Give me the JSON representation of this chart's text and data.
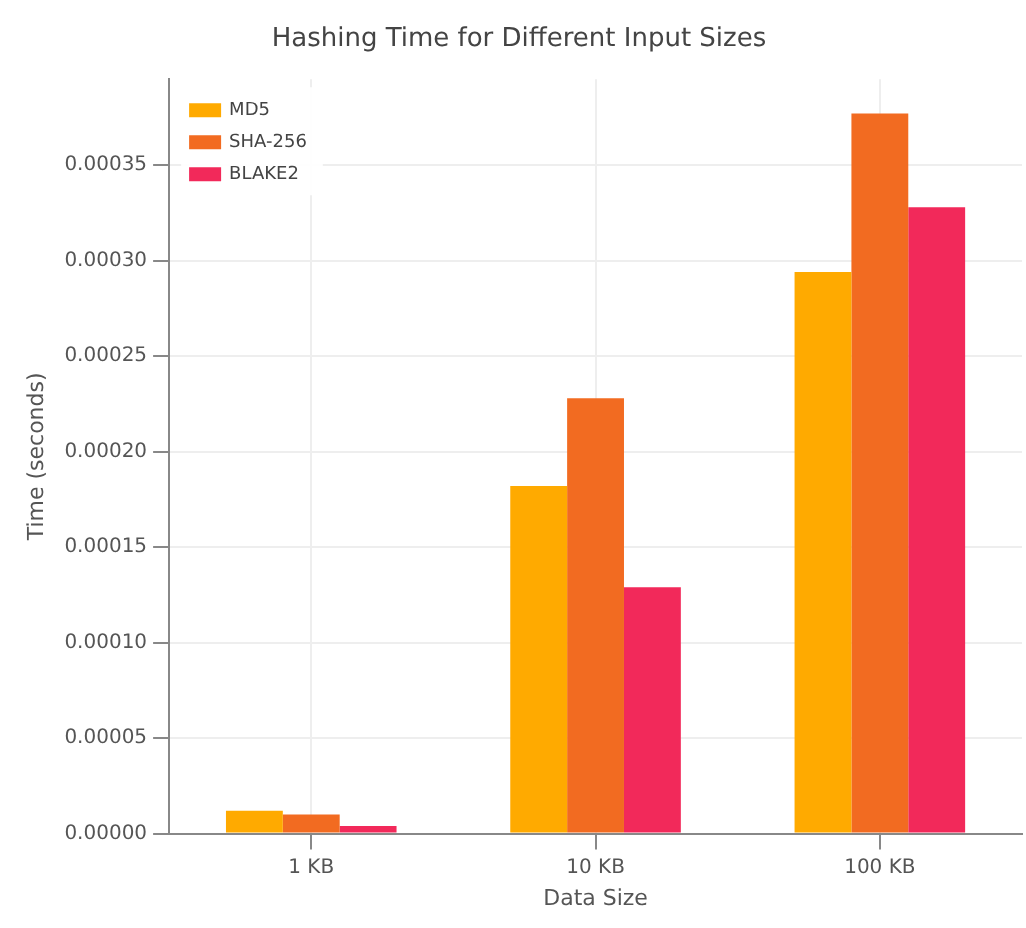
{
  "chart_data": {
    "type": "bar",
    "title": "Hashing Time for Different Input Sizes",
    "xlabel": "Data Size",
    "ylabel": "Time (seconds)",
    "categories": [
      "1 KB",
      "10 KB",
      "100 KB"
    ],
    "series": [
      {
        "name": "MD5",
        "color": "#ffaa00",
        "values": [
          1.2e-05,
          0.000182,
          0.000294
        ]
      },
      {
        "name": "SHA-256",
        "color": "#f26b21",
        "values": [
          1e-05,
          0.000228,
          0.000377
        ]
      },
      {
        "name": "BLAKE2",
        "color": "#f2295a",
        "values": [
          4e-06,
          0.000129,
          0.000328
        ]
      }
    ],
    "ylim": [
      0,
      0.000395
    ],
    "yticks": [
      {
        "value": 0,
        "label": "0.00000"
      },
      {
        "value": 5e-05,
        "label": "0.00005"
      },
      {
        "value": 0.0001,
        "label": "0.00010"
      },
      {
        "value": 0.00015,
        "label": "0.00015"
      },
      {
        "value": 0.0002,
        "label": "0.00020"
      },
      {
        "value": 0.00025,
        "label": "0.00025"
      },
      {
        "value": 0.0003,
        "label": "0.00030"
      },
      {
        "value": 0.00035,
        "label": "0.00035"
      }
    ],
    "grid": true,
    "legend": "top left"
  }
}
